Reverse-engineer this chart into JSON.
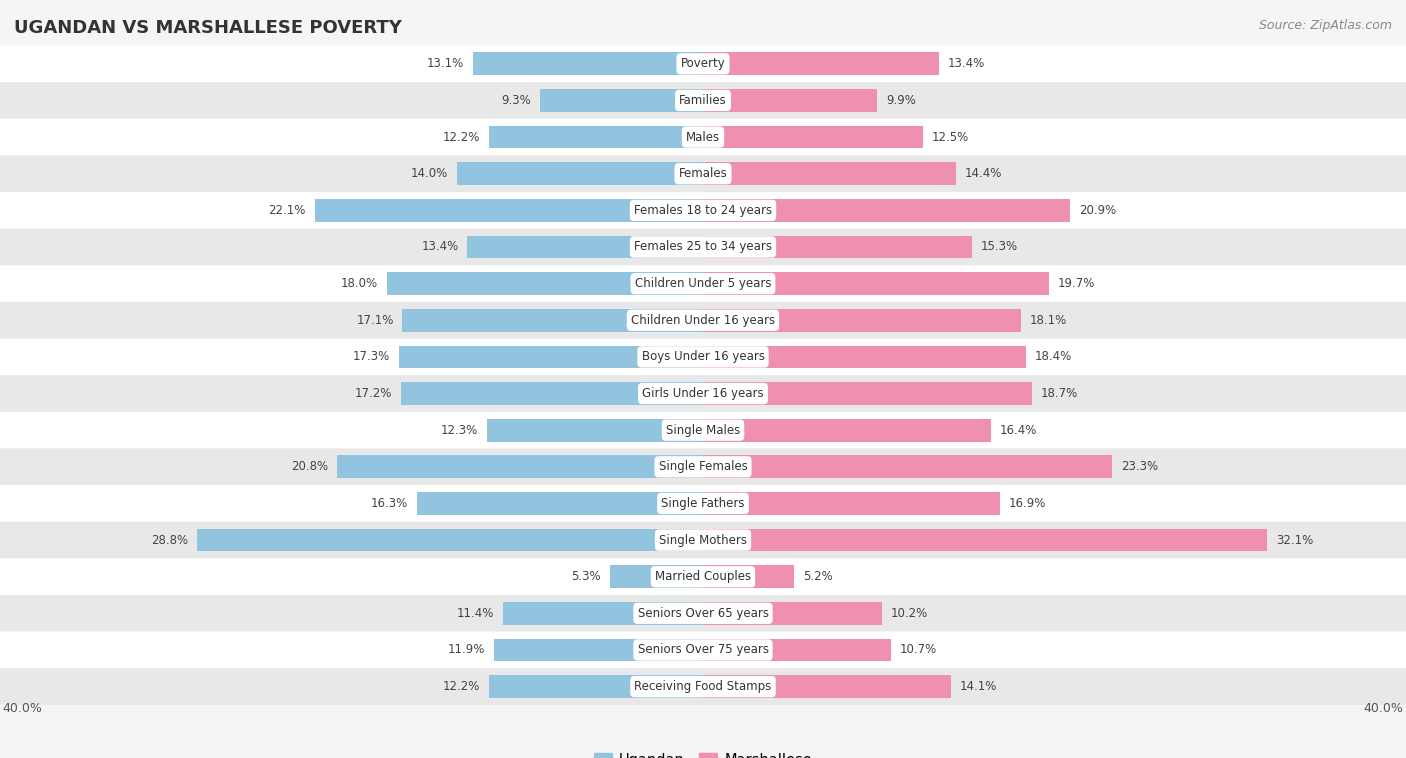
{
  "title": "UGANDAN VS MARSHALLESE POVERTY",
  "source": "Source: ZipAtlas.com",
  "categories": [
    "Poverty",
    "Families",
    "Males",
    "Females",
    "Females 18 to 24 years",
    "Females 25 to 34 years",
    "Children Under 5 years",
    "Children Under 16 years",
    "Boys Under 16 years",
    "Girls Under 16 years",
    "Single Males",
    "Single Females",
    "Single Fathers",
    "Single Mothers",
    "Married Couples",
    "Seniors Over 65 years",
    "Seniors Over 75 years",
    "Receiving Food Stamps"
  ],
  "ugandan": [
    13.1,
    9.3,
    12.2,
    14.0,
    22.1,
    13.4,
    18.0,
    17.1,
    17.3,
    17.2,
    12.3,
    20.8,
    16.3,
    28.8,
    5.3,
    11.4,
    11.9,
    12.2
  ],
  "marshallese": [
    13.4,
    9.9,
    12.5,
    14.4,
    20.9,
    15.3,
    19.7,
    18.1,
    18.4,
    18.7,
    16.4,
    23.3,
    16.9,
    32.1,
    5.2,
    10.2,
    10.7,
    14.1
  ],
  "ugandan_color": "#92C4E0",
  "marshallese_color": "#F090B0",
  "background_color": "#f5f5f5",
  "row_bg_light": "#ffffff",
  "row_bg_dark": "#e8e8e8",
  "xlim": 40.0,
  "legend_labels": [
    "Ugandan",
    "Marshallese"
  ],
  "bar_height": 0.62,
  "label_fontsize": 8.5,
  "cat_fontsize": 8.5
}
